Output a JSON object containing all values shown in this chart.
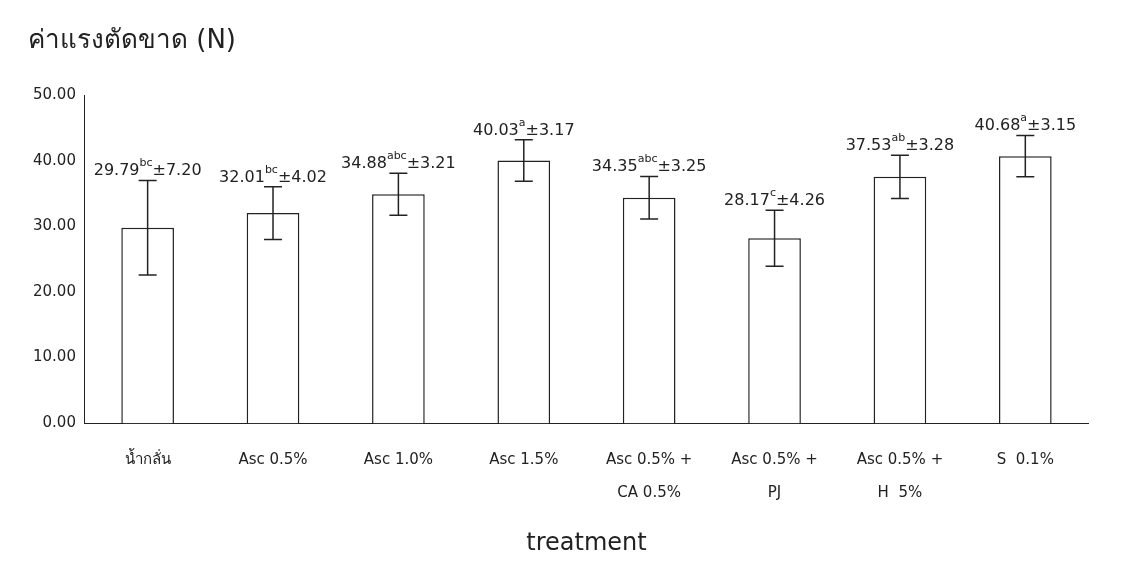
{
  "chart_data": {
    "type": "bar",
    "ylabel": "ค่าแรงตัดขาด (N)",
    "xlabel": "treatment",
    "categories": [
      "น้ำกลั่น",
      "Asc 0.5%",
      "Asc 1.0%",
      "Asc 1.5%",
      "Asc 0.5% +\nCA 0.5%",
      "Asc 0.5% +\nPJ",
      "Asc 0.5% +\nH  5%",
      "S  0.1%"
    ],
    "values": [
      29.79,
      32.01,
      34.88,
      40.03,
      34.35,
      28.17,
      37.53,
      40.68
    ],
    "errors": [
      7.2,
      4.02,
      3.21,
      3.17,
      3.25,
      4.26,
      3.28,
      3.15
    ],
    "value_labels": [
      "29.79$^{bc}$±7.20",
      "32.01$^{bc}$±4.02",
      "34.88$^{abc}$±3.21",
      "40.03$^{a}$±3.17",
      "34.35$^{abc}$±3.25",
      "28.17$^{c}$±4.26",
      "37.53$^{ab}$±3.28",
      "40.68$^{a}$±3.15"
    ],
    "color": "#ffffff",
    "ylim": [
      0,
      50
    ],
    "yticks": [
      {
        "value": 0,
        "label": "0.00"
      },
      {
        "value": 10,
        "label": "10.00"
      },
      {
        "value": 20,
        "label": "20.00"
      },
      {
        "value": 30,
        "label": "30.00"
      },
      {
        "value": 40,
        "label": "40.00"
      },
      {
        "value": 50,
        "label": "50.00"
      }
    ],
    "grid": false,
    "legend": false
  }
}
